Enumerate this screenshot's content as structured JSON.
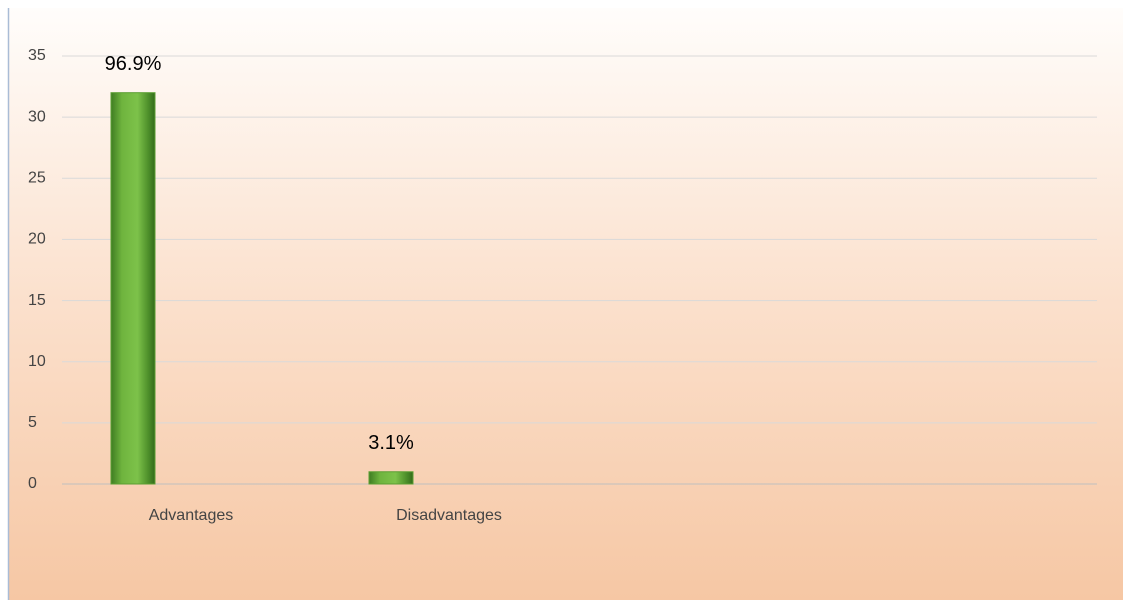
{
  "chart_data": {
    "type": "bar",
    "categories": [
      "Advantages",
      "Disadvantages"
    ],
    "values": [
      32,
      1
    ],
    "annotations": [
      "96.9%",
      "3.1%"
    ],
    "color": "#5a9e32",
    "ylim": [
      0,
      35
    ],
    "yticks": [
      0,
      5,
      10,
      15,
      20,
      25,
      30,
      35
    ],
    "grid": true
  }
}
